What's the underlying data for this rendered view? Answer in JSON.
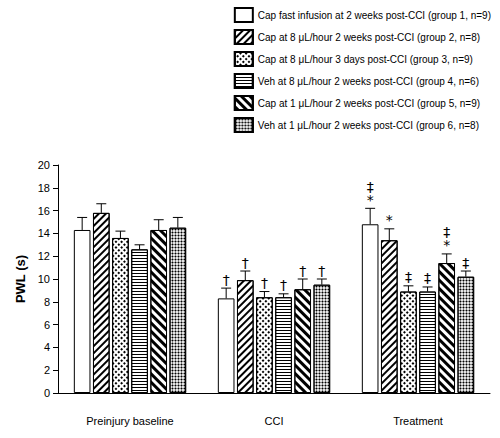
{
  "chart_data": {
    "type": "bar",
    "y_label": "PWL (s)",
    "categories": [
      "Preinjury baseline",
      "CCI",
      "Treatment"
    ],
    "ylim": [
      0,
      20
    ],
    "yticks": [
      0,
      2,
      4,
      6,
      8,
      10,
      12,
      14,
      16,
      18,
      20
    ],
    "grid": false,
    "legend": "upper right",
    "series": [
      {
        "name": "Cap fast infusion at 2 weeks post-CCI (group 1, n=9)",
        "color": "#ffffff",
        "values": [
          14.3,
          8.3,
          14.8
        ],
        "errors": [
          1.1,
          0.9,
          1.4
        ],
        "annotations": [
          null,
          [
            "†"
          ],
          [
            "‡",
            "*"
          ]
        ]
      },
      {
        "name": "Cap at 8 μL/hour 2 weeks post-CCI (group 2, n=8)",
        "color": "#ffffff",
        "values": [
          15.8,
          9.9,
          13.4
        ],
        "errors": [
          0.8,
          0.8,
          1.0
        ],
        "annotations": [
          null,
          [
            "†"
          ],
          [
            "*"
          ]
        ]
      },
      {
        "name": "Cap at 8 μL/hour 3 days post-CCI (group 3, n=9)",
        "color": "#ffffff",
        "values": [
          13.6,
          8.4,
          8.9
        ],
        "errors": [
          0.6,
          0.5,
          0.5
        ],
        "annotations": [
          null,
          [
            "†"
          ],
          [
            "‡"
          ]
        ]
      },
      {
        "name": "Veh at 8 μL/hour 2 weeks post-CCI (group 4, n=6)",
        "color": "#ffffff",
        "values": [
          12.6,
          8.4,
          8.9
        ],
        "errors": [
          0.4,
          0.3,
          0.4
        ],
        "annotations": [
          null,
          [
            "†"
          ],
          [
            "‡"
          ]
        ]
      },
      {
        "name": "Cap at 1 μL/hour 2 weeks post-CCI (group 5, n=9)",
        "color": "#ffffff",
        "values": [
          14.3,
          9.1,
          11.4
        ],
        "errors": [
          0.9,
          0.9,
          0.8
        ],
        "annotations": [
          null,
          [
            "†"
          ],
          [
            "‡",
            "*"
          ]
        ]
      },
      {
        "name": "Veh at 1 μL/hour 2 weeks post-CCI (group 6, n=8)",
        "color": "#ffffff",
        "values": [
          14.5,
          9.5,
          10.2
        ],
        "errors": [
          0.9,
          0.5,
          0.5
        ],
        "annotations": [
          null,
          [
            "†"
          ],
          [
            "‡"
          ]
        ]
      }
    ]
  }
}
